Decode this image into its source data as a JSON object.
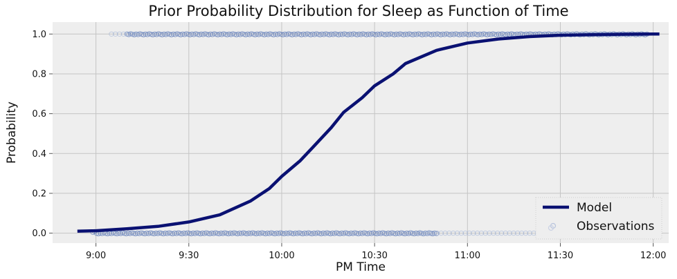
{
  "chart_data": {
    "type": "scatter",
    "title": "Prior Probability Distribution for Sleep as Function of Time",
    "xlabel": "PM Time",
    "ylabel": "Probability",
    "x_unit": "minutes past 9:00 PM",
    "xlim": [
      -14,
      185
    ],
    "ylim": [
      -0.05,
      1.06
    ],
    "x_ticks": [
      {
        "value": 0,
        "label": "9:00"
      },
      {
        "value": 30,
        "label": "9:30"
      },
      {
        "value": 60,
        "label": "10:00"
      },
      {
        "value": 90,
        "label": "10:30"
      },
      {
        "value": 120,
        "label": "11:00"
      },
      {
        "value": 150,
        "label": "11:30"
      },
      {
        "value": 180,
        "label": "12:00"
      }
    ],
    "y_ticks": [
      {
        "value": 0.0,
        "label": "0.0"
      },
      {
        "value": 0.2,
        "label": "0.2"
      },
      {
        "value": 0.4,
        "label": "0.4"
      },
      {
        "value": 0.6,
        "label": "0.6"
      },
      {
        "value": 0.8,
        "label": "0.8"
      },
      {
        "value": 1.0,
        "label": "1.0"
      }
    ],
    "grid": true,
    "legend": {
      "position": "bottom-right",
      "entries": [
        "Model",
        "Observations"
      ]
    },
    "series": [
      {
        "name": "Model",
        "kind": "line",
        "color": "#0a1172",
        "x": [
          -6,
          0,
          10,
          20,
          30,
          40,
          50,
          56,
          60,
          66,
          70,
          76,
          80,
          86,
          90,
          96,
          100,
          110,
          120,
          130,
          140,
          150,
          160,
          170,
          180,
          182
        ],
        "y": [
          0.01,
          0.012,
          0.022,
          0.034,
          0.056,
          0.092,
          0.162,
          0.224,
          0.285,
          0.364,
          0.43,
          0.53,
          0.607,
          0.68,
          0.74,
          0.8,
          0.852,
          0.918,
          0.955,
          0.975,
          0.987,
          0.994,
          0.997,
          0.999,
          1.0,
          1.0
        ]
      },
      {
        "name": "Observations",
        "kind": "scatter",
        "color": "#4a6bb0",
        "bands": [
          {
            "y": 1.0,
            "dense_range": [
              10,
              178
            ],
            "sparse_range": [
              5,
              14
            ]
          },
          {
            "y": 0.0,
            "dense_range": [
              -1,
              110
            ],
            "sparse_range": [
              105,
              145
            ]
          }
        ]
      }
    ]
  }
}
